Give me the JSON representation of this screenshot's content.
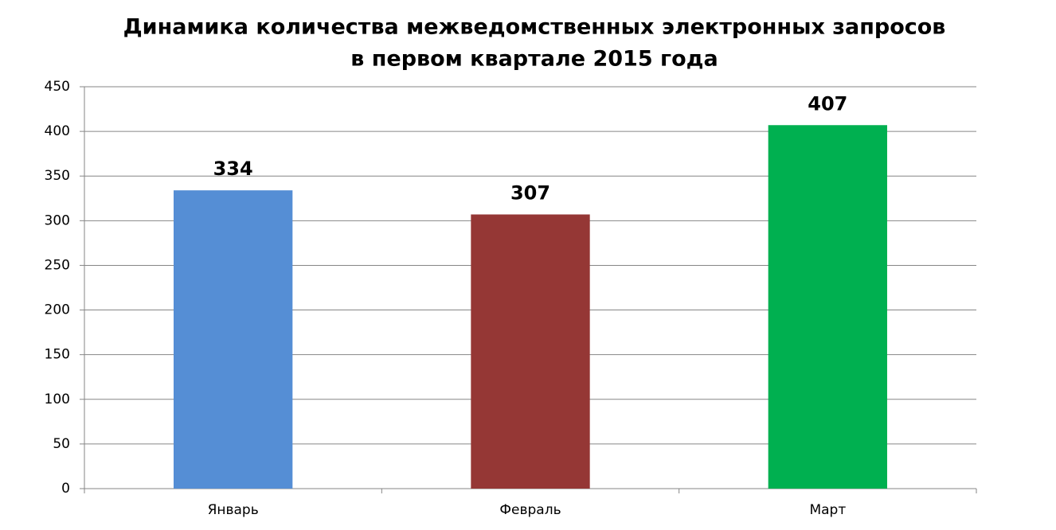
{
  "chart_data": {
    "type": "bar",
    "title": [
      "Динамика количества межведомственных электронных запросов",
      "в первом квартале 2015 года"
    ],
    "categories": [
      "Январь",
      "Февраль",
      "Март"
    ],
    "values": [
      334,
      307,
      407
    ],
    "colors": [
      "#558ed5",
      "#953735",
      "#00b050"
    ],
    "ylim": [
      0,
      450
    ],
    "yticks": [
      0,
      50,
      100,
      150,
      200,
      250,
      300,
      350,
      400,
      450
    ],
    "grid": true
  }
}
